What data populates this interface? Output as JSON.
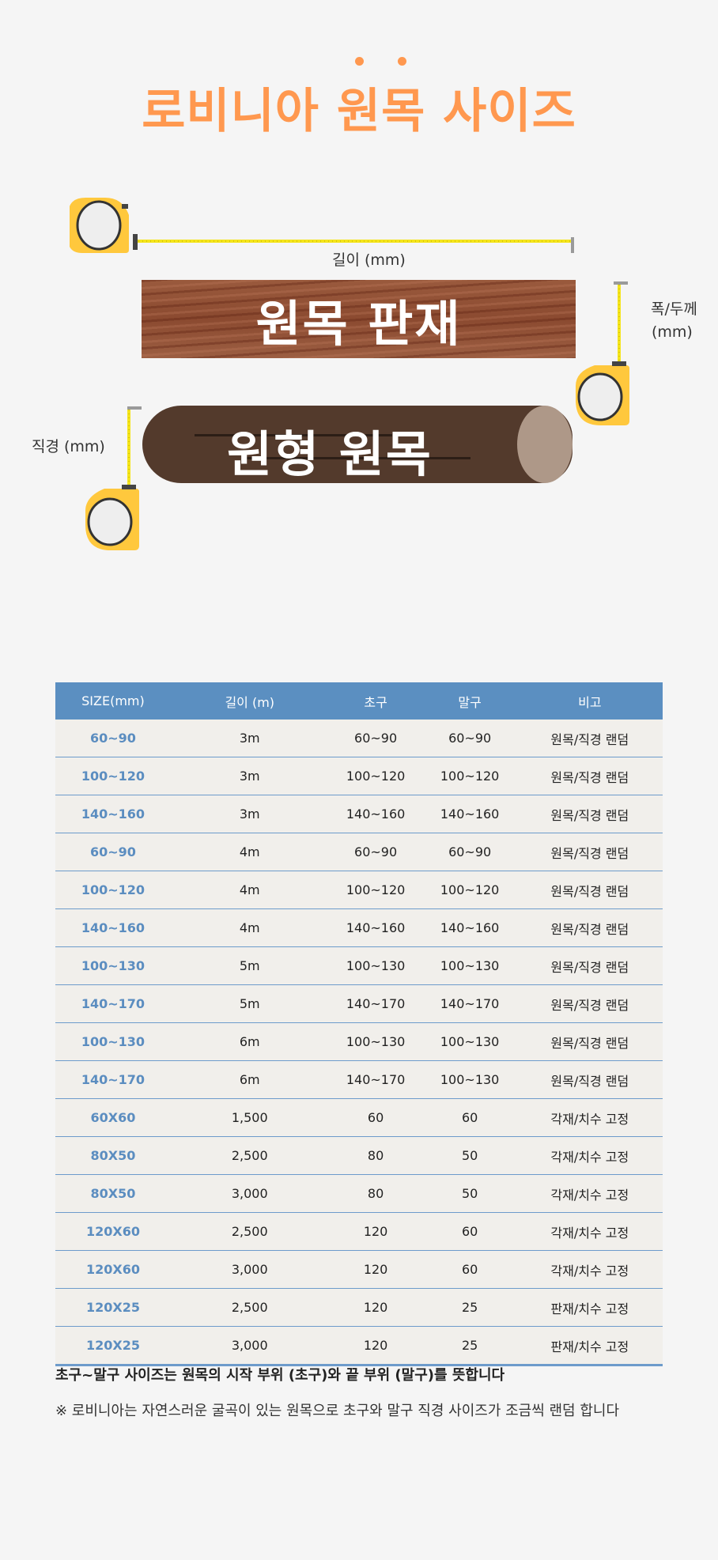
{
  "title": "로비니아 원목 사이즈",
  "colors": {
    "accent": "#ff984f",
    "table_header": "#5b8fc1",
    "size_text": "#5b8dc0",
    "board": "#8b4a30",
    "log": "#533a2c",
    "tape": "#ffc83d"
  },
  "diagram": {
    "length_label": "길이 (mm)",
    "width_label_line1": "폭/두께",
    "width_label_line2": "(mm)",
    "diameter_label": "직경 (mm)",
    "board_text": "원목 판재",
    "log_text": "원형 원목"
  },
  "table": {
    "headers": [
      "SIZE(mm)",
      "길이 (m)",
      "초구",
      "말구",
      "비고"
    ],
    "rows": [
      [
        "60~90",
        "3m",
        "60~90",
        "60~90",
        "원목/직경 랜덤"
      ],
      [
        "100~120",
        "3m",
        "100~120",
        "100~120",
        "원목/직경 랜덤"
      ],
      [
        "140~160",
        "3m",
        "140~160",
        "140~160",
        "원목/직경 랜덤"
      ],
      [
        "60~90",
        "4m",
        "60~90",
        "60~90",
        "원목/직경 랜덤"
      ],
      [
        "100~120",
        "4m",
        "100~120",
        "100~120",
        "원목/직경 랜덤"
      ],
      [
        "140~160",
        "4m",
        "140~160",
        "140~160",
        "원목/직경 랜덤"
      ],
      [
        "100~130",
        "5m",
        "100~130",
        "100~130",
        "원목/직경 랜덤"
      ],
      [
        "140~170",
        "5m",
        "140~170",
        "140~170",
        "원목/직경 랜덤"
      ],
      [
        "100~130",
        "6m",
        "100~130",
        "100~130",
        "원목/직경 랜덤"
      ],
      [
        "140~170",
        "6m",
        "140~170",
        "100~130",
        "원목/직경 랜덤"
      ],
      [
        "60X60",
        "1,500",
        "60",
        "60",
        "각재/치수 고정"
      ],
      [
        "80X50",
        "2,500",
        "80",
        "50",
        "각재/치수 고정"
      ],
      [
        "80X50",
        "3,000",
        "80",
        "50",
        "각재/치수 고정"
      ],
      [
        "120X60",
        "2,500",
        "120",
        "60",
        "각재/치수 고정"
      ],
      [
        "120X60",
        "3,000",
        "120",
        "60",
        "각재/치수 고정"
      ],
      [
        "120X25",
        "2,500",
        "120",
        "25",
        "판재/치수 고정"
      ],
      [
        "120X25",
        "3,000",
        "120",
        "25",
        "판재/치수 고정"
      ]
    ]
  },
  "notes": {
    "line1": "초구~말구 사이즈는 원목의 시작 부위 (초구)와 끝 부위 (말구)를 뜻합니다",
    "line2": "※ 로비니아는 자연스러운 굴곡이 있는 원목으로 초구와 말구 직경 사이즈가 조금씩 랜덤 합니다"
  }
}
